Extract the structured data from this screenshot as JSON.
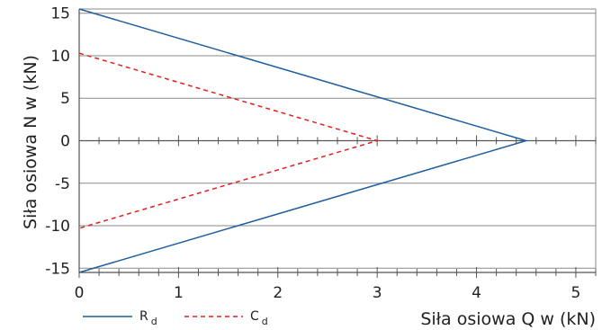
{
  "chart_data": {
    "type": "line",
    "xlabel": "Siła osiowa Q w (kN)",
    "ylabel": "Siła osiowa N w (kN)",
    "xlim": [
      0,
      5.2
    ],
    "ylim": [
      -15.5,
      15.5
    ],
    "x_ticks": [
      "0",
      "1",
      "2",
      "3",
      "4",
      "5"
    ],
    "x_tick_values": [
      0,
      1,
      2,
      3,
      4,
      5
    ],
    "y_ticks": [
      "15",
      "10",
      "5",
      "0",
      "-5",
      "-10",
      "-15"
    ],
    "y_tick_values": [
      15,
      10,
      5,
      0,
      -5,
      -10,
      -15
    ],
    "x_minor_step": 0.2,
    "grid": "horizontal",
    "legend_position": "bottom-left",
    "series": [
      {
        "name": "R",
        "subscript": "d",
        "color": "#1f5f9e",
        "dash": "solid",
        "points": [
          [
            0,
            15.5
          ],
          [
            4.5,
            0
          ],
          [
            0,
            -15.5
          ]
        ]
      },
      {
        "name": "C",
        "subscript": "d",
        "color": "#e0201e",
        "dash": "dashed",
        "points": [
          [
            0,
            10.3
          ],
          [
            3.0,
            0
          ],
          [
            0,
            -10.3
          ]
        ]
      }
    ]
  }
}
